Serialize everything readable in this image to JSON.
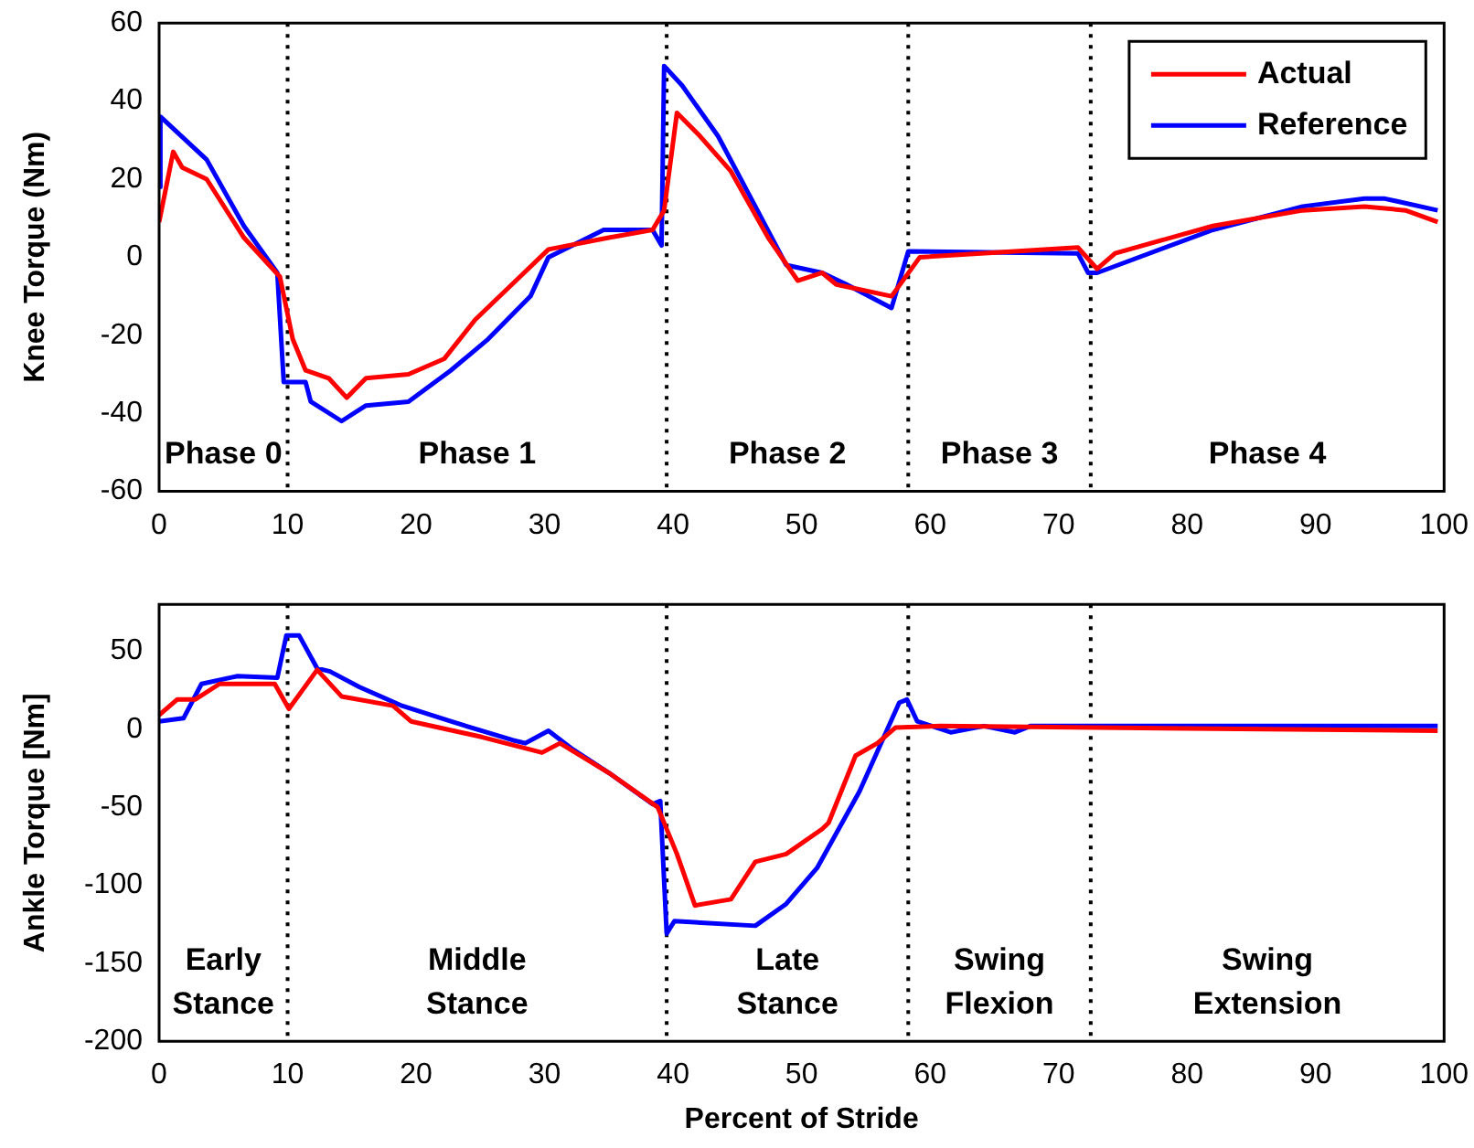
{
  "chart_data": [
    {
      "type": "line",
      "ylabel": "Knee Torque (Nm)",
      "xlim": [
        0,
        100
      ],
      "xticks": [
        0,
        10,
        20,
        30,
        40,
        50,
        60,
        70,
        80,
        90,
        100
      ],
      "ylim": [
        -60,
        60
      ],
      "yticks": [
        -60,
        -40,
        -20,
        0,
        20,
        40,
        60
      ],
      "grid": false,
      "legend": "top right",
      "marker": "none",
      "line_style": "solid",
      "series": [
        {
          "name": "Actual",
          "color": "#ff0000",
          "x": [
            0,
            1.1,
            1.8,
            3.7,
            6.6,
            9.4,
            10.4,
            11.4,
            13.2,
            14.6,
            16.1,
            19.4,
            22.2,
            24.6,
            28.4,
            30.3,
            35,
            38.4,
            39.3,
            40.3,
            42.1,
            44.5,
            47.4,
            49.7,
            51.6,
            52.7,
            57,
            59.2,
            71.5,
            73,
            74.4,
            82,
            89,
            93.8,
            97,
            99.5
          ],
          "values": [
            9,
            27,
            23,
            20,
            5,
            -5,
            -21,
            -29,
            -31,
            -36,
            -31,
            -30,
            -26,
            -16,
            -4,
            2,
            5,
            7,
            12,
            37,
            31,
            22,
            5,
            -6,
            -4,
            -7,
            -10,
            0,
            2.5,
            -3,
            1,
            8,
            12,
            13,
            12,
            9
          ]
        },
        {
          "name": "Reference",
          "color": "#0000ff",
          "x": [
            0,
            0.1,
            3.7,
            6.6,
            9.2,
            9.7,
            11.4,
            11.8,
            14.2,
            16.1,
            19.4,
            22.7,
            25.6,
            28.9,
            30.3,
            34.6,
            38.4,
            39.1,
            39.3,
            40.7,
            43.5,
            46.4,
            48.8,
            51.6,
            53.5,
            57,
            58.3,
            71.5,
            72.3,
            73,
            82,
            89,
            93.8,
            95.4,
            99.5
          ],
          "values": [
            18,
            36,
            25,
            8,
            -4,
            -32,
            -32,
            -37,
            -42,
            -38,
            -37,
            -29,
            -21,
            -10,
            0,
            7,
            7,
            3,
            49,
            44,
            31,
            13,
            -2,
            -4,
            -7,
            -13,
            1.5,
            1,
            -4,
            -4,
            7,
            13,
            15,
            15,
            12
          ]
        }
      ],
      "ref_lines": [
        {
          "axis": "x",
          "value": 10,
          "color": "#000000",
          "line_style": "dotted"
        },
        {
          "axis": "x",
          "value": 39.5,
          "color": "#000000",
          "line_style": "dotted"
        },
        {
          "axis": "x",
          "value": 58.3,
          "color": "#000000",
          "line_style": "dotted"
        },
        {
          "axis": "x",
          "value": 72.5,
          "color": "#000000",
          "line_style": "dotted"
        }
      ],
      "annotations": [
        "Phase 0",
        "Phase 1",
        "Phase 2",
        "Phase 3",
        "Phase 4"
      ]
    },
    {
      "type": "line",
      "xlabel": "Percent of Stride",
      "ylabel": "Ankle Torque [Nm]",
      "xlim": [
        0,
        100
      ],
      "xticks": [
        0,
        10,
        20,
        30,
        40,
        50,
        60,
        70,
        80,
        90,
        100
      ],
      "ylim": [
        -200,
        80
      ],
      "yticks": [
        -200,
        -150,
        -100,
        -50,
        0,
        50
      ],
      "grid": false,
      "legend": false,
      "marker": "none",
      "line_style": "solid",
      "series": [
        {
          "color": "#ff0000",
          "x": [
            0,
            1.4,
            2.8,
            4.7,
            9,
            10.1,
            12.3,
            14.2,
            18.2,
            19.6,
            25.1,
            29.8,
            31.2,
            35,
            38.8,
            40.3,
            41.7,
            44.5,
            46.4,
            48.8,
            51.6,
            52.1,
            54.2,
            55.9,
            57.3,
            60.8,
            99.5
          ],
          "values": [
            9,
            19,
            19,
            29,
            29,
            13,
            38,
            21,
            15,
            5,
            -5,
            -15,
            -9,
            -28,
            -50,
            -80,
            -113,
            -109,
            -85,
            -80,
            -64,
            -60,
            -17,
            -9,
            1,
            2,
            -1
          ]
        },
        {
          "color": "#0000ff",
          "x": [
            0,
            1.9,
            3.3,
            6.1,
            9.2,
            9.9,
            10.9,
            12.3,
            13.3,
            15.6,
            18.9,
            22.7,
            27.5,
            28.5,
            30.3,
            32.2,
            35,
            38.4,
            39,
            39.5,
            40.1,
            46.4,
            48.8,
            51.2,
            54.5,
            57.6,
            58.2,
            59,
            61.6,
            64.2,
            66.6,
            67.8,
            99.5
          ],
          "values": [
            5,
            7,
            29,
            34,
            33,
            60,
            60,
            39,
            37,
            27,
            15,
            5,
            -7,
            -9,
            -1,
            -13,
            -28,
            -48,
            -46,
            -131,
            -123,
            -126,
            -112,
            -89,
            -40,
            17,
            19,
            5,
            -2,
            2,
            -2,
            2,
            2
          ]
        }
      ],
      "ref_lines": [
        {
          "axis": "x",
          "value": 10,
          "color": "#000000",
          "line_style": "dotted"
        },
        {
          "axis": "x",
          "value": 39.5,
          "color": "#000000",
          "line_style": "dotted"
        },
        {
          "axis": "x",
          "value": 58.3,
          "color": "#000000",
          "line_style": "dotted"
        },
        {
          "axis": "x",
          "value": 72.5,
          "color": "#000000",
          "line_style": "dotted"
        }
      ],
      "annotations": [
        "Early\nStance",
        "Middle\nStance",
        "Late\nStance",
        "Swing\nFlexion",
        "Swing\nExtension"
      ]
    }
  ]
}
